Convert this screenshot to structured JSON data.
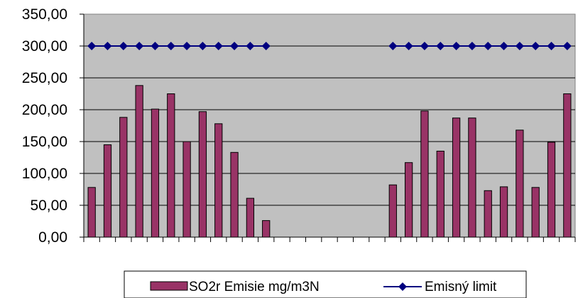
{
  "chart_data": {
    "type": "bar",
    "ylim": [
      0,
      350
    ],
    "y_ticks": [
      "0,00",
      "50,00",
      "100,00",
      "150,00",
      "200,00",
      "250,00",
      "300,00",
      "350,00"
    ],
    "y_tick_values": [
      0,
      50,
      100,
      150,
      200,
      250,
      300,
      350
    ],
    "grid": true,
    "legend_position": "bottom",
    "category_count": 31,
    "series": [
      {
        "name": "SO2r Emisie mg/m3N",
        "kind": "bar",
        "color": "#993366",
        "values": [
          78,
          145,
          188,
          238,
          201,
          225,
          150,
          197,
          178,
          133,
          61,
          26,
          null,
          null,
          null,
          null,
          null,
          null,
          null,
          82,
          117,
          198,
          135,
          187,
          187,
          73,
          79,
          168,
          78,
          149,
          225
        ]
      },
      {
        "name": "Emisný limit",
        "kind": "line",
        "color": "#000080",
        "values": [
          300,
          300,
          300,
          300,
          300,
          300,
          300,
          300,
          300,
          300,
          300,
          300,
          null,
          null,
          null,
          null,
          null,
          null,
          null,
          300,
          300,
          300,
          300,
          300,
          300,
          300,
          300,
          300,
          300,
          300,
          300
        ]
      }
    ]
  },
  "colors": {
    "plot_background": "#c0c0c0",
    "bar_fill": "#993366",
    "line_color": "#000080"
  }
}
